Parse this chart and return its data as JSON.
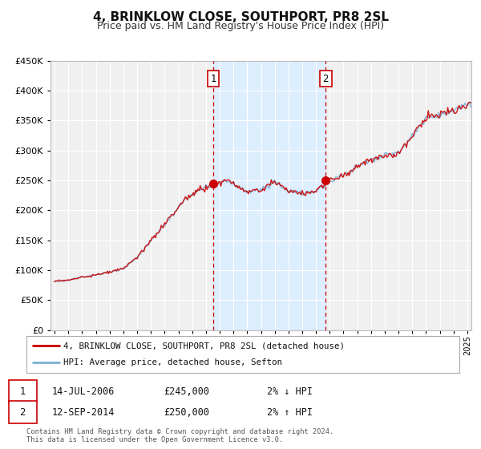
{
  "title": "4, BRINKLOW CLOSE, SOUTHPORT, PR8 2SL",
  "subtitle": "Price paid vs. HM Land Registry's House Price Index (HPI)",
  "legend_line1": "4, BRINKLOW CLOSE, SOUTHPORT, PR8 2SL (detached house)",
  "legend_line2": "HPI: Average price, detached house, Sefton",
  "annotation1_date": "14-JUL-2006",
  "annotation1_price": "£245,000",
  "annotation1_hpi": "2% ↓ HPI",
  "annotation2_date": "12-SEP-2014",
  "annotation2_price": "£250,000",
  "annotation2_hpi": "2% ↑ HPI",
  "footer_line1": "Contains HM Land Registry data © Crown copyright and database right 2024.",
  "footer_line2": "This data is licensed under the Open Government Licence v3.0.",
  "price_color": "#cc0000",
  "hpi_color": "#7bafd4",
  "shaded_region_color": "#ddeeff",
  "vline_color": "#cc0000",
  "background_color": "#ffffff",
  "plot_bg_color": "#f0f0f0",
  "grid_color": "#ffffff",
  "sale1_x": 2006.54,
  "sale1_y": 245000,
  "sale2_x": 2014.71,
  "sale2_y": 250000,
  "ylim": [
    0,
    450000
  ],
  "xlim_start": 1994.7,
  "xlim_end": 2025.3,
  "yticks": [
    0,
    50000,
    100000,
    150000,
    200000,
    250000,
    300000,
    350000,
    400000,
    450000
  ]
}
